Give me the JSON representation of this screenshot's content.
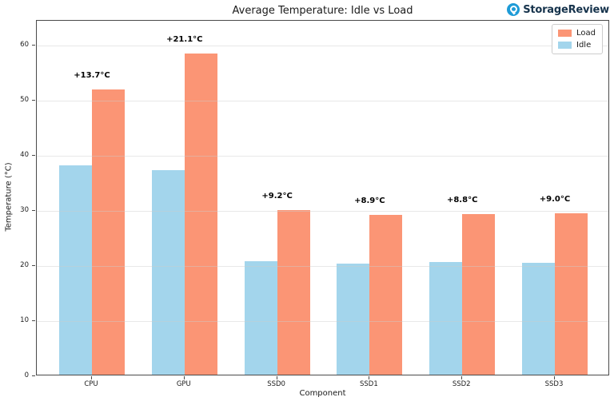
{
  "header": {
    "logo_text": "StorageReview",
    "logo_color": "#1E9BD7",
    "logo_text_color": "#16334C"
  },
  "chart_data": {
    "type": "bar",
    "title": "Average Temperature: Idle vs Load",
    "xlabel": "Component",
    "ylabel": "Temperature (°C)",
    "categories": [
      "CPU",
      "GPU",
      "SSD0",
      "SSD1",
      "SSD2",
      "SSD3"
    ],
    "series": [
      {
        "name": "Idle",
        "color": "#A3D5EC",
        "values": [
          38.0,
          37.1,
          20.6,
          20.1,
          20.4,
          20.3
        ]
      },
      {
        "name": "Load",
        "color": "#FB9575",
        "values": [
          51.7,
          58.2,
          29.8,
          29.0,
          29.2,
          29.3
        ]
      }
    ],
    "annotations": [
      "+13.7°C",
      "+21.1°C",
      "+9.2°C",
      "+8.9°C",
      "+8.8°C",
      "+9.0°C"
    ],
    "ylim": [
      0,
      64.5
    ],
    "yticks": [
      0,
      10,
      20,
      30,
      40,
      50,
      60
    ],
    "grid": true,
    "legend": {
      "position": "upper right",
      "entries": [
        "Load",
        "Idle"
      ]
    }
  }
}
